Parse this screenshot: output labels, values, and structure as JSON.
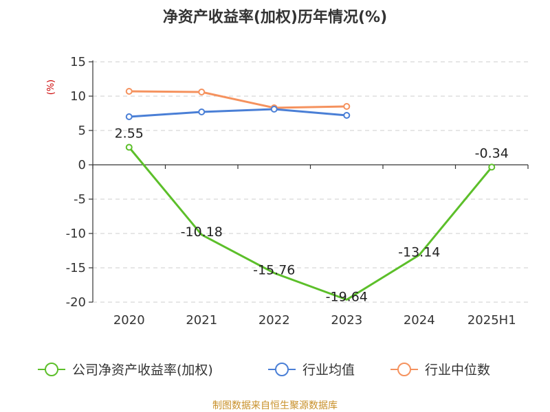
{
  "chart_data": {
    "type": "line",
    "title": "净资产收益率(加权)历年情况(%)",
    "ylabel": "(%)",
    "xlabel": "",
    "categories": [
      "2020",
      "2021",
      "2022",
      "2023",
      "2024",
      "2025H1"
    ],
    "ylim": [
      -20,
      15
    ],
    "yticks": [
      "15",
      "10",
      "5",
      "0",
      "-5",
      "-10",
      "-15",
      "-20"
    ],
    "grid": true,
    "legend_position": "bottom",
    "series": [
      {
        "name": "公司净资产收益率(加权)",
        "color": "#5cbf2a",
        "values": [
          2.55,
          -10.18,
          -15.76,
          -19.64,
          -13.14,
          -0.34
        ],
        "labels": [
          "2.55",
          "-10.18",
          "-15.76",
          "-19.64",
          "-13.14",
          "-0.34"
        ],
        "markers": [
          true,
          false,
          false,
          false,
          false,
          true
        ]
      },
      {
        "name": "行业均值",
        "color": "#4a7fd6",
        "values": [
          7.0,
          7.7,
          8.1,
          7.2,
          null,
          null
        ],
        "markers": [
          true,
          true,
          true,
          true,
          false,
          false
        ]
      },
      {
        "name": "行业中位数",
        "color": "#f5925e",
        "values": [
          10.7,
          10.6,
          8.3,
          8.5,
          null,
          null
        ],
        "markers": [
          true,
          true,
          true,
          true,
          false,
          false
        ]
      }
    ],
    "source": "制图数据来自恒生聚源数据库",
    "colors": {
      "axis": "#333333",
      "grid": "#cccccc",
      "ylabel": "#cc0000",
      "source": "#c8902a"
    }
  }
}
